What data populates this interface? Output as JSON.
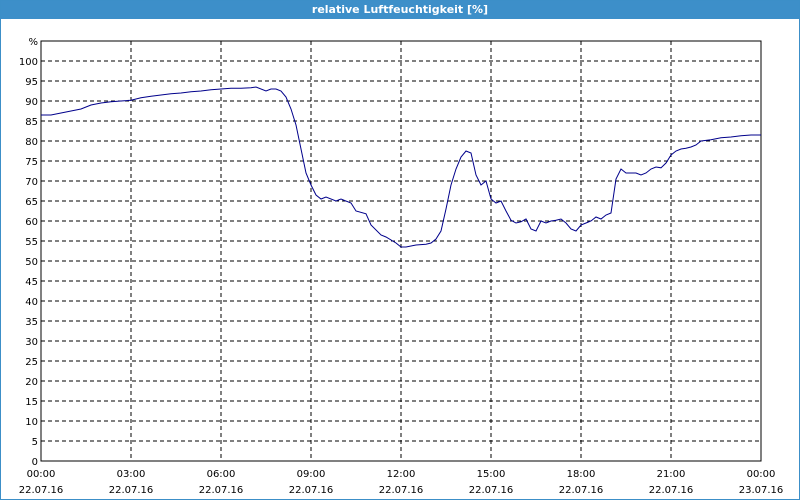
{
  "window": {
    "title": "relative Luftfeuchtigkeit [%]"
  },
  "colors": {
    "titlebar": "#3d8fc9",
    "line": "#00008b",
    "grid": "#000000",
    "background": "#ffffff"
  },
  "chart_data": {
    "type": "line",
    "title": "relative Luftfeuchtigkeit [%]",
    "ylabel": "%",
    "xlabel": "",
    "ylim": [
      0,
      105
    ],
    "xlim": [
      "22.07.16 00:00",
      "23.07.16 00:00"
    ],
    "grid": true,
    "yticks": [
      0,
      5,
      10,
      15,
      20,
      25,
      30,
      35,
      40,
      45,
      50,
      55,
      60,
      65,
      70,
      75,
      80,
      85,
      90,
      95,
      100
    ],
    "xticks": [
      {
        "time": "00:00",
        "date": "22.07.16"
      },
      {
        "time": "03:00",
        "date": "22.07.16"
      },
      {
        "time": "06:00",
        "date": "22.07.16"
      },
      {
        "time": "09:00",
        "date": "22.07.16"
      },
      {
        "time": "12:00",
        "date": "22.07.16"
      },
      {
        "time": "15:00",
        "date": "22.07.16"
      },
      {
        "time": "18:00",
        "date": "22.07.16"
      },
      {
        "time": "21:00",
        "date": "22.07.16"
      },
      {
        "time": "00:00",
        "date": "23.07.16"
      }
    ],
    "series": [
      {
        "x": [
          "00:00",
          "00:20",
          "00:40",
          "01:00",
          "01:20",
          "01:40",
          "02:00",
          "02:20",
          "02:40",
          "03:00",
          "03:20",
          "03:40",
          "04:00",
          "04:20",
          "04:40",
          "05:00",
          "05:20",
          "05:40",
          "06:00",
          "06:20",
          "06:40",
          "07:00",
          "07:10",
          "07:30",
          "07:40",
          "07:50",
          "08:00",
          "08:10",
          "08:20",
          "08:30",
          "08:40",
          "08:50",
          "09:00",
          "09:10",
          "09:20",
          "09:30",
          "09:50",
          "10:00",
          "10:20",
          "10:30",
          "10:50",
          "11:00",
          "11:20",
          "11:30",
          "11:50",
          "12:00",
          "12:10",
          "12:30",
          "12:50",
          "13:00",
          "13:10",
          "13:20",
          "13:30",
          "13:40",
          "13:50",
          "14:00",
          "14:10",
          "14:20",
          "14:30",
          "14:40",
          "14:50",
          "15:00",
          "15:10",
          "15:20",
          "15:30",
          "15:40",
          "15:50",
          "16:00",
          "16:10",
          "16:20",
          "16:30",
          "16:40",
          "16:50",
          "17:00",
          "17:10",
          "17:20",
          "17:30",
          "17:40",
          "17:50",
          "18:00",
          "18:10",
          "18:20",
          "18:30",
          "18:40",
          "18:50",
          "19:00",
          "19:10",
          "19:20",
          "19:30",
          "19:40",
          "19:50",
          "20:00",
          "20:10",
          "20:20",
          "20:30",
          "20:40",
          "20:50",
          "21:00",
          "21:10",
          "21:20",
          "21:30",
          "21:40",
          "21:50",
          "22:00",
          "22:20",
          "22:40",
          "23:00",
          "23:20",
          "23:40",
          "24:00"
        ],
        "values": [
          86.5,
          86.5,
          87,
          87.5,
          88,
          89,
          89.5,
          89.8,
          90,
          90.2,
          90.8,
          91.2,
          91.5,
          91.8,
          92,
          92.3,
          92.5,
          92.8,
          93,
          93.2,
          93.2,
          93.3,
          93.5,
          92.5,
          93,
          93,
          92.5,
          91,
          88,
          84,
          78,
          72,
          69,
          66.5,
          65.5,
          66,
          65,
          65.5,
          64.5,
          62.5,
          61.8,
          59,
          56.5,
          56,
          54.5,
          53.5,
          53.5,
          54,
          54.2,
          54.5,
          55.5,
          57.5,
          63,
          69,
          73,
          76,
          77.5,
          77,
          71.5,
          69,
          70,
          65.5,
          64.5,
          65,
          62.5,
          60.2,
          59.5,
          59.8,
          60.5,
          58,
          57.5,
          60,
          59.5,
          60,
          60.2,
          60.5,
          59.5,
          58,
          57.5,
          59,
          59.5,
          60,
          61,
          60.5,
          61.5,
          62,
          70.5,
          73,
          72,
          72,
          72,
          71.5,
          72,
          73,
          73.5,
          73.3,
          74.5,
          76.5,
          77.5,
          78,
          78.2,
          78.5,
          79,
          80,
          80.3,
          80.8,
          81,
          81.3,
          81.5,
          81.5
        ]
      }
    ]
  }
}
